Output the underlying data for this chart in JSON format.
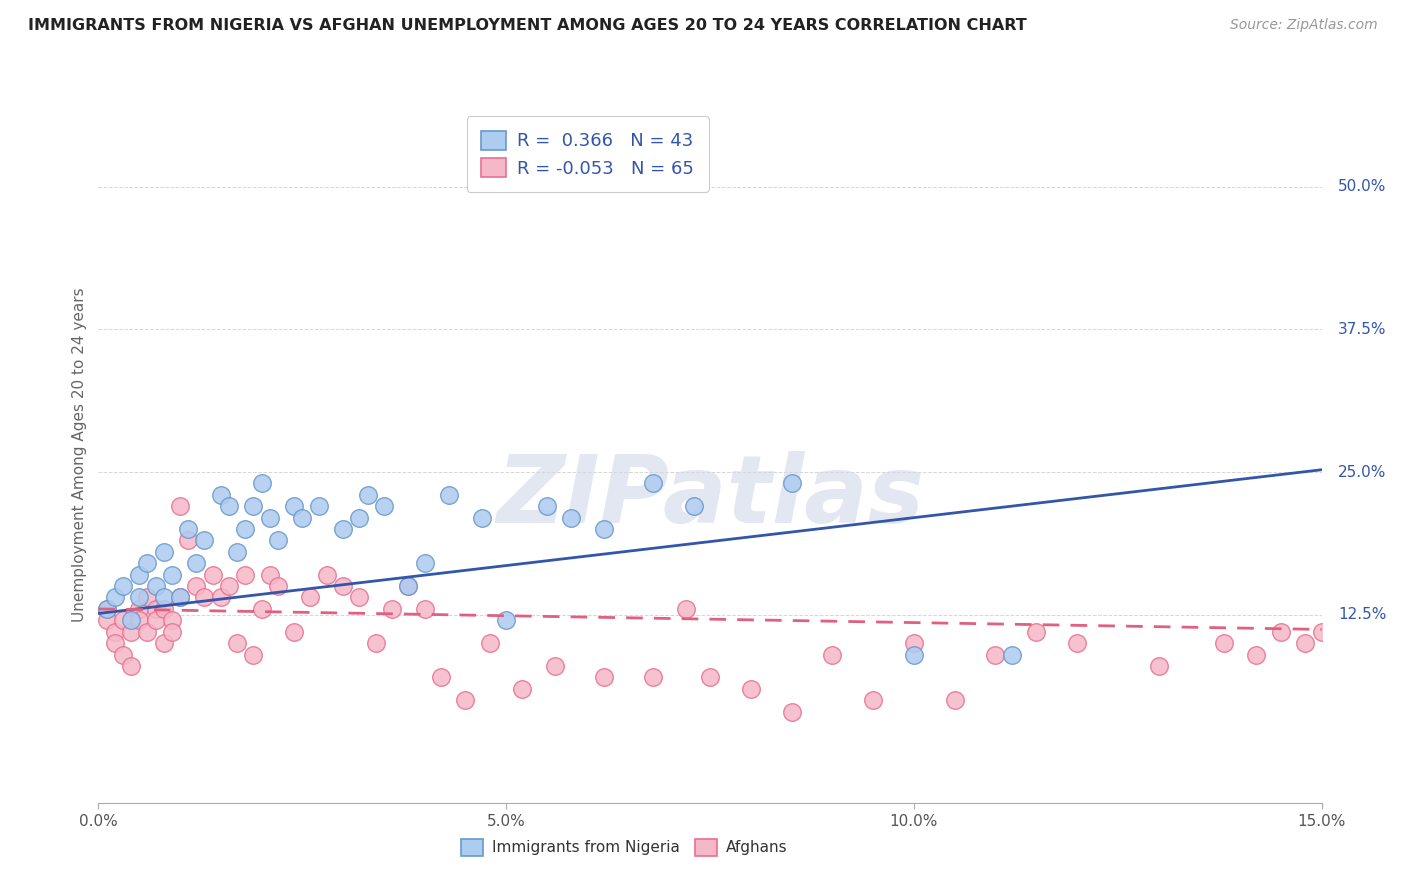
{
  "title": "IMMIGRANTS FROM NIGERIA VS AFGHAN UNEMPLOYMENT AMONG AGES 20 TO 24 YEARS CORRELATION CHART",
  "source": "Source: ZipAtlas.com",
  "ylabel": "Unemployment Among Ages 20 to 24 years",
  "xlim": [
    0.0,
    0.15
  ],
  "ylim": [
    -0.04,
    0.57
  ],
  "xticks": [
    0.0,
    0.05,
    0.1,
    0.15
  ],
  "xticklabels": [
    "0.0%",
    "5.0%",
    "10.0%",
    "15.0%"
  ],
  "yticks_right": [
    0.125,
    0.25,
    0.375,
    0.5
  ],
  "yticklabels_right": [
    "12.5%",
    "25.0%",
    "37.5%",
    "50.0%"
  ],
  "grid_color": "#cccccc",
  "background_color": "#ffffff",
  "nigeria_color": "#aecbf0",
  "afghanistan_color": "#f5b8c8",
  "nigeria_edge_color": "#6699cc",
  "afghanistan_edge_color": "#e87090",
  "nigeria_line_color": "#3355aa",
  "afghanistan_line_color": "#e06080",
  "r_nigeria": 0.366,
  "n_nigeria": 43,
  "r_afghanistan": -0.053,
  "n_afghanistan": 65,
  "watermark_text": "ZIPatlas",
  "nigeria_scatter_x": [
    0.001,
    0.002,
    0.003,
    0.004,
    0.005,
    0.005,
    0.006,
    0.007,
    0.008,
    0.008,
    0.009,
    0.01,
    0.011,
    0.012,
    0.013,
    0.015,
    0.016,
    0.017,
    0.018,
    0.019,
    0.02,
    0.021,
    0.022,
    0.024,
    0.025,
    0.027,
    0.03,
    0.032,
    0.033,
    0.035,
    0.038,
    0.04,
    0.043,
    0.047,
    0.05,
    0.055,
    0.058,
    0.062,
    0.068,
    0.073,
    0.085,
    0.1,
    0.112
  ],
  "nigeria_scatter_y": [
    0.13,
    0.14,
    0.15,
    0.12,
    0.14,
    0.16,
    0.17,
    0.15,
    0.14,
    0.18,
    0.16,
    0.14,
    0.2,
    0.17,
    0.19,
    0.23,
    0.22,
    0.18,
    0.2,
    0.22,
    0.24,
    0.21,
    0.19,
    0.22,
    0.21,
    0.22,
    0.2,
    0.21,
    0.23,
    0.22,
    0.15,
    0.17,
    0.23,
    0.21,
    0.12,
    0.22,
    0.21,
    0.2,
    0.24,
    0.22,
    0.24,
    0.09,
    0.09
  ],
  "afghanistan_scatter_x": [
    0.001,
    0.001,
    0.002,
    0.002,
    0.003,
    0.003,
    0.004,
    0.004,
    0.005,
    0.005,
    0.006,
    0.006,
    0.007,
    0.007,
    0.008,
    0.008,
    0.009,
    0.009,
    0.01,
    0.01,
    0.011,
    0.012,
    0.013,
    0.014,
    0.015,
    0.016,
    0.017,
    0.018,
    0.019,
    0.02,
    0.021,
    0.022,
    0.024,
    0.026,
    0.028,
    0.03,
    0.032,
    0.034,
    0.036,
    0.038,
    0.04,
    0.042,
    0.045,
    0.048,
    0.052,
    0.056,
    0.062,
    0.068,
    0.072,
    0.075,
    0.08,
    0.085,
    0.09,
    0.095,
    0.1,
    0.105,
    0.11,
    0.115,
    0.12,
    0.13,
    0.138,
    0.142,
    0.145,
    0.148,
    0.15
  ],
  "afghanistan_scatter_y": [
    0.13,
    0.12,
    0.11,
    0.1,
    0.12,
    0.09,
    0.11,
    0.08,
    0.13,
    0.12,
    0.14,
    0.11,
    0.13,
    0.12,
    0.1,
    0.13,
    0.12,
    0.11,
    0.22,
    0.14,
    0.19,
    0.15,
    0.14,
    0.16,
    0.14,
    0.15,
    0.1,
    0.16,
    0.09,
    0.13,
    0.16,
    0.15,
    0.11,
    0.14,
    0.16,
    0.15,
    0.14,
    0.1,
    0.13,
    0.15,
    0.13,
    0.07,
    0.05,
    0.1,
    0.06,
    0.08,
    0.07,
    0.07,
    0.13,
    0.07,
    0.06,
    0.04,
    0.09,
    0.05,
    0.1,
    0.05,
    0.09,
    0.11,
    0.1,
    0.08,
    0.1,
    0.09,
    0.11,
    0.1,
    0.11
  ],
  "nigeria_trendline_x": [
    0.0,
    0.15
  ],
  "nigeria_trendline_y": [
    0.126,
    0.252
  ],
  "afghanistan_trendline_x": [
    0.0,
    0.15
  ],
  "afghanistan_trendline_y": [
    0.13,
    0.112
  ]
}
